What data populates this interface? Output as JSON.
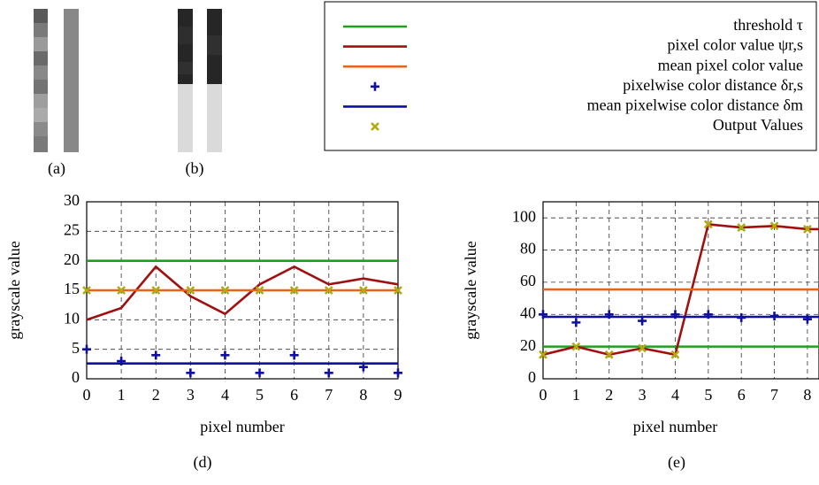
{
  "captions": [
    "(a)",
    "(b)",
    "(d)",
    "(e)"
  ],
  "chart_data": [
    {
      "type": "line",
      "xlabel": "pixel number",
      "ylabel": "grayscale value",
      "x": [
        0,
        1,
        2,
        3,
        4,
        5,
        6,
        7,
        8,
        9
      ],
      "xlim": [
        0,
        9
      ],
      "ylim": [
        0,
        30
      ],
      "xticks": [
        0,
        1,
        2,
        3,
        4,
        5,
        6,
        7,
        8,
        9
      ],
      "yticks": [
        0,
        5,
        10,
        15,
        20,
        25,
        30
      ],
      "grid": true,
      "series": [
        {
          "name": "threshold τ",
          "color": "#1ea01e",
          "level": 20
        },
        {
          "name": "pixel color value ψr,s",
          "color": "#a01010",
          "values": [
            10,
            12,
            19,
            14,
            11,
            16,
            19,
            16,
            17,
            16
          ]
        },
        {
          "name": "mean pixel color value",
          "color": "#e8641b",
          "level": 15
        },
        {
          "name": "pixelwise color distance δr,s",
          "color": "#1010a0",
          "marker": "plus",
          "values": [
            5,
            3,
            4,
            1,
            4,
            1,
            4,
            1,
            2,
            1
          ]
        },
        {
          "name": "mean pixelwise color distance δm",
          "color": "#1010a0",
          "level": 2.6
        },
        {
          "name": "Output Values",
          "color": "#b0aa10",
          "marker": "x",
          "values": [
            15,
            15,
            15,
            15,
            15,
            15,
            15,
            15,
            15,
            15
          ]
        }
      ]
    },
    {
      "type": "line",
      "xlabel": "pixel number",
      "ylabel": "grayscale value",
      "x": [
        0,
        1,
        2,
        3,
        4,
        5,
        6,
        7,
        8
      ],
      "xlim": [
        0,
        8.35
      ],
      "ylim": [
        0,
        110
      ],
      "xticks": [
        0,
        1,
        2,
        3,
        4,
        5,
        6,
        7,
        8
      ],
      "yticks": [
        0,
        20,
        40,
        60,
        80,
        100
      ],
      "grid": true,
      "series": [
        {
          "color": "#1ea01e",
          "level": 20
        },
        {
          "color": "#a01010",
          "values": [
            15,
            20,
            15,
            19,
            15,
            96,
            94,
            95,
            93
          ]
        },
        {
          "color": "#e8641b",
          "level": 55.5
        },
        {
          "color": "#1010a0",
          "marker": "plus",
          "values": [
            40,
            35,
            40,
            36,
            40,
            40,
            38,
            39,
            37
          ]
        },
        {
          "color": "#1010a0",
          "level": 38.5
        },
        {
          "color": "#b0aa10",
          "marker": "x",
          "values": [
            15,
            20,
            15,
            19,
            15,
            96,
            94,
            95,
            93
          ]
        }
      ]
    }
  ]
}
